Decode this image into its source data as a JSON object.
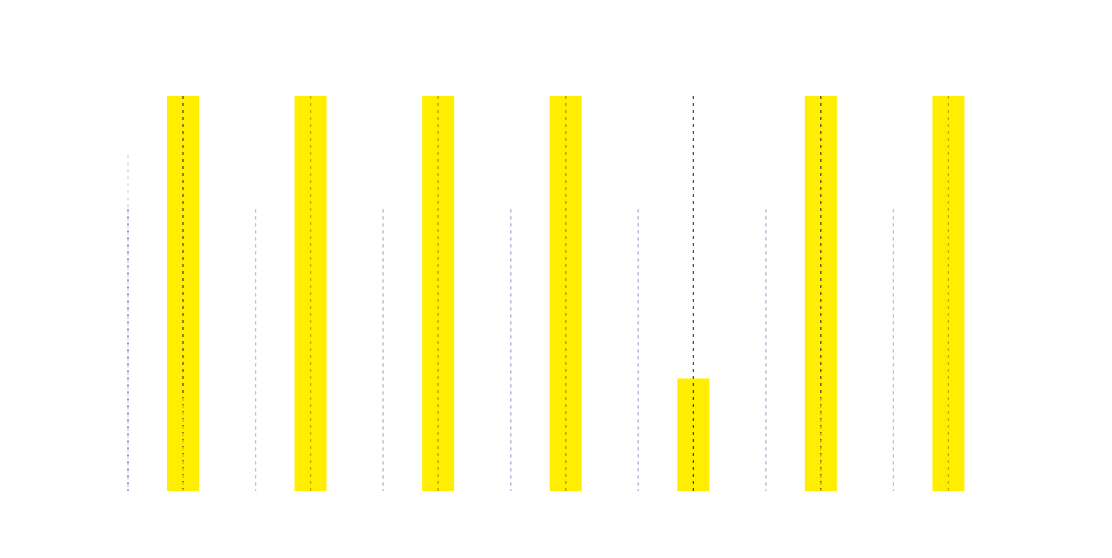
{
  "chart_data": {
    "type": "bar",
    "title": "",
    "xlabel": "",
    "ylabel": "",
    "categories": [
      "",
      "",
      "",
      "",
      "",
      "",
      ""
    ],
    "values": [
      1.0,
      1.0,
      1.0,
      1.0,
      0.285,
      1.0,
      1.0
    ],
    "ylim": [
      0,
      1
    ],
    "bar_color": "#ffee00",
    "series_lines": [
      {
        "name": "",
        "color": "#2b2bb0",
        "style": "dashed",
        "values": [
          0.713,
          0.713,
          0.713,
          0.713,
          0.713,
          0.713,
          0.713
        ]
      },
      {
        "name": "",
        "color": "#c8c8d8",
        "style": "dashed",
        "values": [
          0.85,
          0.713,
          0.713,
          0.713,
          0.713,
          0.713,
          0.713
        ]
      },
      {
        "name": "",
        "color": "#1a1a40",
        "style": "dashed",
        "values": [
          1.0,
          1.0,
          1.0,
          1.0,
          1.0,
          1.0,
          1.0
        ]
      },
      {
        "name": "",
        "color": "#d8b000",
        "style": "dashed",
        "values": [
          0.235,
          1.0,
          1.0,
          1.0,
          0.0,
          0.235,
          1.0
        ]
      }
    ],
    "grid": false,
    "legend": "none"
  }
}
